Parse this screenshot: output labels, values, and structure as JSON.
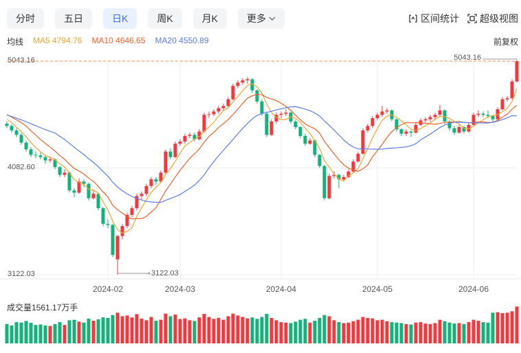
{
  "tabs": [
    "分时",
    "五日",
    "日K",
    "周K",
    "月K",
    "更多"
  ],
  "active_tab": 2,
  "tools": [
    "区间统计",
    "超级视图"
  ],
  "chart_data": {
    "type": "candlestick",
    "ma_label": "均线",
    "adjust": "前复权",
    "up_color": "#f0393e",
    "down_color": "#13b27a",
    "ylim": [
      3122.03,
      5043.16
    ],
    "yticks": [
      3122.03,
      {
        "value": 4082.6,
        "label": "4082.60"
      },
      5043.16
    ],
    "grid": true,
    "categories": [
      null,
      null,
      null,
      null,
      null,
      null,
      null,
      null,
      null,
      null,
      null,
      null,
      null,
      null,
      null,
      null,
      null,
      null,
      null,
      null,
      null,
      "2024-02",
      null,
      null,
      null,
      null,
      null,
      null,
      null,
      null,
      null,
      null,
      null,
      null,
      null,
      null,
      "2024-03",
      null,
      null,
      null,
      null,
      null,
      null,
      null,
      null,
      null,
      null,
      null,
      null,
      null,
      null,
      null,
      null,
      null,
      null,
      null,
      null,
      "2024-04",
      null,
      null,
      null,
      null,
      null,
      null,
      null,
      null,
      null,
      null,
      null,
      null,
      null,
      null,
      null,
      null,
      null,
      null,
      null,
      "2024-05",
      null,
      null,
      null,
      null,
      null,
      null,
      null,
      null,
      null,
      null,
      null,
      null,
      null,
      null,
      null,
      null,
      null,
      null,
      null,
      "2024-06",
      null,
      null,
      null,
      null,
      null,
      null,
      null,
      null,
      null
    ],
    "open": [
      4480,
      4460,
      4420,
      4380,
      4310,
      4250,
      4200,
      4195,
      4180,
      4150,
      4160,
      4090,
      4020,
      4040,
      3880,
      3860,
      3960,
      3940,
      3810,
      3850,
      3720,
      3580,
      3570,
      3260,
      3470,
      3560,
      3660,
      3720,
      3830,
      3850,
      3920,
      3980,
      3960,
      4040,
      4230,
      4180,
      4300,
      4320,
      4370,
      4380,
      4340,
      4410,
      4560,
      4565,
      4590,
      4620,
      4640,
      4700,
      4820,
      4850,
      4870,
      4880,
      4780,
      4680,
      4570,
      4380,
      4500,
      4560,
      4570,
      4580,
      4500,
      4450,
      4370,
      4300,
      4330,
      4200,
      4100,
      3810,
      4010,
      4020,
      3980,
      4000,
      4050,
      4140,
      4210,
      4420,
      4460,
      4530,
      4560,
      4590,
      4600,
      4520,
      4430,
      4390,
      4410,
      4400,
      4470,
      4510,
      4520,
      4540,
      4560,
      4600,
      4500,
      4440,
      4400,
      4450,
      4410,
      4470,
      4560,
      4570,
      4560,
      4550,
      4520,
      4610,
      4700,
      4710,
      4860
    ],
    "high": [
      4500,
      4475,
      4440,
      4395,
      4330,
      4270,
      4230,
      4220,
      4200,
      4185,
      4170,
      4100,
      4070,
      4050,
      3900,
      3990,
      3980,
      3950,
      3880,
      3860,
      3730,
      3620,
      3580,
      3480,
      3580,
      3680,
      3740,
      3850,
      3870,
      3940,
      4000,
      4000,
      4060,
      4250,
      4260,
      4320,
      4340,
      4390,
      4400,
      4400,
      4430,
      4580,
      4590,
      4610,
      4640,
      4660,
      4720,
      4840,
      4870,
      4890,
      4900,
      4890,
      4790,
      4700,
      4590,
      4520,
      4580,
      4590,
      4610,
      4590,
      4520,
      4460,
      4390,
      4350,
      4340,
      4210,
      4110,
      4030,
      4050,
      4030,
      4020,
      4070,
      4160,
      4230,
      4440,
      4480,
      4550,
      4580,
      4640,
      4620,
      4610,
      4530,
      4440,
      4430,
      4420,
      4490,
      4530,
      4540,
      4560,
      4580,
      4650,
      4610,
      4510,
      4460,
      4470,
      4460,
      4490,
      4580,
      4600,
      4590,
      4600,
      4560,
      4630,
      4720,
      4730,
      4880,
      5043.16
    ],
    "low": [
      4440,
      4400,
      4360,
      4290,
      4230,
      4180,
      4170,
      4160,
      4120,
      4130,
      4070,
      4000,
      4000,
      3860,
      3820,
      3850,
      3910,
      3790,
      3800,
      3700,
      3560,
      3540,
      3280,
      3122.03,
      3440,
      3540,
      3640,
      3700,
      3800,
      3830,
      3900,
      3930,
      3950,
      4030,
      4160,
      4170,
      4280,
      4300,
      4350,
      4320,
      4330,
      4400,
      4530,
      4550,
      4570,
      4600,
      4630,
      4690,
      4800,
      4830,
      4840,
      4760,
      4660,
      4550,
      4360,
      4370,
      4480,
      4530,
      4550,
      4480,
      4430,
      4350,
      4280,
      4290,
      4180,
      4080,
      3790,
      3800,
      3990,
      3900,
      3960,
      3990,
      4040,
      4130,
      4200,
      4400,
      4440,
      4510,
      4540,
      4570,
      4500,
      4410,
      4370,
      4370,
      4360,
      4390,
      4460,
      4490,
      4500,
      4520,
      4550,
      4480,
      4420,
      4380,
      4390,
      4390,
      4400,
      4460,
      4540,
      4540,
      4530,
      4490,
      4510,
      4600,
      4680,
      4700,
      4850
    ],
    "close": [
      4460,
      4420,
      4380,
      4310,
      4250,
      4200,
      4195,
      4180,
      4150,
      4160,
      4090,
      4020,
      4040,
      3880,
      3860,
      3960,
      3940,
      3810,
      3850,
      3720,
      3580,
      3570,
      3300,
      3470,
      3560,
      3660,
      3720,
      3830,
      3850,
      3920,
      3980,
      3960,
      4040,
      4230,
      4180,
      4300,
      4320,
      4370,
      4380,
      4340,
      4410,
      4560,
      4565,
      4590,
      4620,
      4640,
      4700,
      4820,
      4850,
      4870,
      4880,
      4780,
      4680,
      4570,
      4380,
      4500,
      4560,
      4570,
      4580,
      4500,
      4450,
      4370,
      4300,
      4330,
      4200,
      4100,
      3810,
      4010,
      4020,
      3980,
      4000,
      4050,
      4140,
      4210,
      4420,
      4460,
      4530,
      4560,
      4590,
      4600,
      4520,
      4430,
      4390,
      4410,
      4400,
      4470,
      4510,
      4520,
      4540,
      4560,
      4600,
      4500,
      4440,
      4400,
      4450,
      4410,
      4470,
      4560,
      4570,
      4560,
      4550,
      4520,
      4610,
      4700,
      4710,
      4860,
      5043.16
    ],
    "series": [
      {
        "name": "MA5",
        "color": "#f5a42c",
        "values": [
          4520,
          4490,
          4450,
          4410,
          4364,
          4312,
          4267,
          4227,
          4195,
          4177,
          4155,
          4120,
          4092,
          4038,
          3978,
          3952,
          3936,
          3890,
          3884,
          3856,
          3780,
          3706,
          3604,
          3528,
          3496,
          3512,
          3542,
          3648,
          3724,
          3796,
          3860,
          3908,
          3950,
          4026,
          4078,
          4142,
          4214,
          4280,
          4310,
          4342,
          4364,
          4412,
          4451,
          4493,
          4549,
          4595,
          4623,
          4674,
          4726,
          4776,
          4824,
          4840,
          4812,
          4756,
          4658,
          4582,
          4538,
          4516,
          4518,
          4542,
          4532,
          4494,
          4440,
          4390,
          4330,
          4260,
          4148,
          4090,
          4028,
          3984,
          3964,
          4012,
          4038,
          4076,
          4164,
          4256,
          4352,
          4436,
          4512,
          4548,
          4560,
          4540,
          4506,
          4470,
          4430,
          4420,
          4436,
          4462,
          4488,
          4520,
          4546,
          4544,
          4528,
          4500,
          4478,
          4440,
          4434,
          4458,
          4492,
          4514,
          4542,
          4552,
          4562,
          4588,
          4618,
          4680,
          4794.76
        ]
      },
      {
        "name": "MA10",
        "color": "#f0602a",
        "values": [
          4560,
          4540,
          4515,
          4490,
          4460,
          4416,
          4378,
          4338,
          4302,
          4270,
          4234,
          4194,
          4160,
          4116,
          4078,
          4054,
          4028,
          3991,
          3961,
          3917,
          3866,
          3821,
          3747,
          3706,
          3676,
          3646,
          3624,
          3626,
          3626,
          3646,
          3686,
          3725,
          3799,
          3875,
          3937,
          4001,
          4061,
          4115,
          4168,
          4210,
          4253,
          4313,
          4366,
          4402,
          4446,
          4480,
          4518,
          4563,
          4610,
          4663,
          4710,
          4732,
          4743,
          4741,
          4717,
          4703,
          4689,
          4664,
          4637,
          4600,
          4557,
          4516,
          4478,
          4454,
          4436,
          4396,
          4321,
          4265,
          4209,
          4157,
          4112,
          4080,
          4064,
          4052,
          4074,
          4110,
          4182,
          4237,
          4294,
          4356,
          4408,
          4446,
          4471,
          4491,
          4489,
          4490,
          4488,
          4484,
          4479,
          4475,
          4483,
          4490,
          4495,
          4494,
          4499,
          4493,
          4489,
          4493,
          4496,
          4496,
          4491,
          4493,
          4510,
          4540,
          4566,
          4611,
          4646.65
        ]
      },
      {
        "name": "MA20",
        "color": "#5a7cf0",
        "values": [
          4560,
          4545,
          4530,
          4515,
          4498,
          4480,
          4462,
          4444,
          4427,
          4412,
          4397,
          4367,
          4338,
          4303,
          4269,
          4235,
          4203,
          4165,
          4132,
          4094,
          4050,
          4008,
          3954,
          3911,
          3877,
          3850,
          3826,
          3809,
          3794,
          3782,
          3776,
          3773,
          3773,
          3791,
          3807,
          3824,
          3843,
          3871,
          3897,
          3928,
          3970,
          4019,
          4083,
          4139,
          4192,
          4241,
          4290,
          4339,
          4389,
          4437,
          4482,
          4523,
          4555,
          4572,
          4582,
          4592,
          4604,
          4614,
          4624,
          4632,
          4634,
          4624,
          4611,
          4598,
          4577,
          4550,
          4505,
          4465,
          4423,
          4379,
          4335,
          4298,
          4271,
          4253,
          4255,
          4253,
          4252,
          4251,
          4252,
          4257,
          4260,
          4263,
          4268,
          4272,
          4282,
          4300,
          4335,
          4361,
          4387,
          4416,
          4446,
          4468,
          4483,
          4493,
          4494,
          4492,
          4489,
          4489,
          4488,
          4486,
          4487,
          4492,
          4503,
          4517,
          4533,
          4552,
          4550.89
        ]
      }
    ],
    "volume_label": "成交量",
    "volume_unit": "万手",
    "vlim": [
      0,
      1600
    ],
    "volume": [
      820,
      760,
      900,
      880,
      950,
      870,
      780,
      800,
      760,
      740,
      820,
      900,
      780,
      980,
      1000,
      920,
      880,
      1050,
      960,
      1020,
      1100,
      1080,
      1200,
      1300,
      1150,
      1180,
      1100,
      1240,
      1050,
      980,
      1120,
      960,
      1000,
      1260,
      1150,
      1220,
      1030,
      1060,
      980,
      950,
      1100,
      1250,
      1120,
      1040,
      1080,
      1000,
      1150,
      1260,
      1180,
      1120,
      1060,
      1100,
      1040,
      1120,
      1250,
      1080,
      980,
      900,
      880,
      860,
      920,
      1000,
      1040,
      880,
      960,
      1080,
      1200,
      1150,
      980,
      900,
      860,
      880,
      940,
      1000,
      1120,
      1080,
      1060,
      980,
      1000,
      940,
      900,
      880,
      860,
      820,
      800,
      880,
      900,
      840,
      820,
      860,
      1000,
      940,
      880,
      840,
      860,
      820,
      900,
      1000,
      960,
      900,
      880,
      1300,
      1320,
      1280,
      1300,
      1360,
      1561.17
    ]
  }
}
